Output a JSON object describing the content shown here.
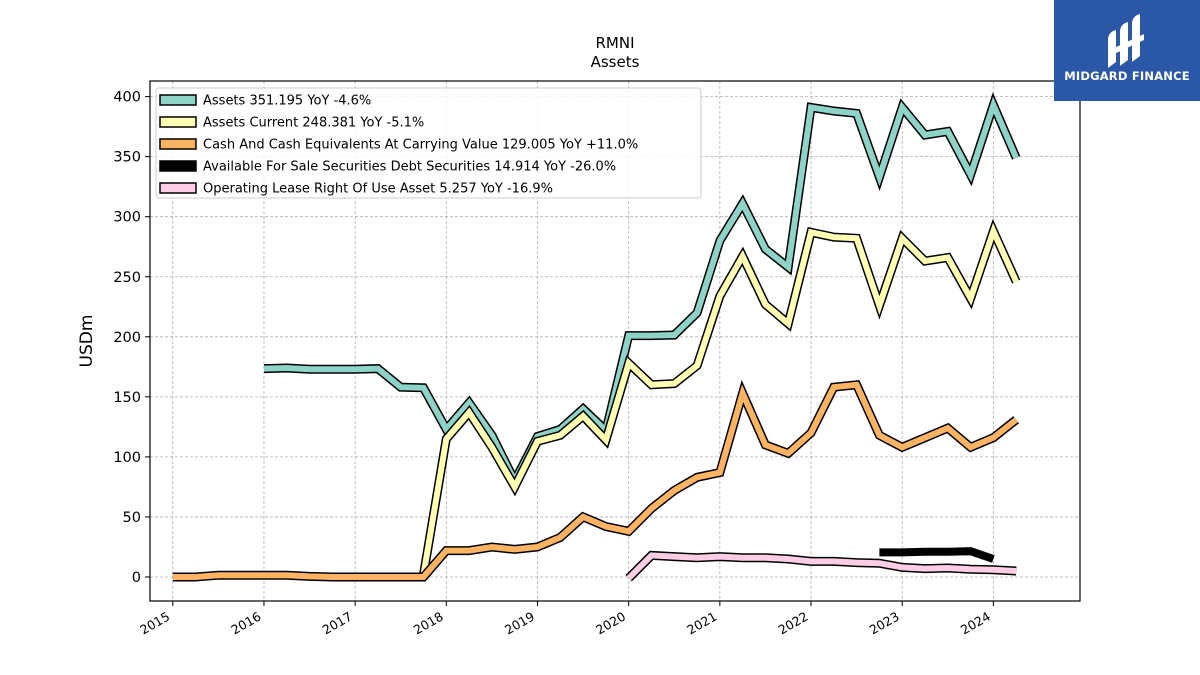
{
  "brand": {
    "name": "MIDGARD FINANCE",
    "color": "#2b58a6"
  },
  "chart_data": {
    "type": "line",
    "title": "RMNI",
    "subtitle": "Assets",
    "ylabel": "USDm",
    "xlabel": "",
    "xlim": [
      2014.75,
      2024.95
    ],
    "ylim": [
      -20,
      413
    ],
    "yticks": [
      0,
      50,
      100,
      150,
      200,
      250,
      300,
      350,
      400
    ],
    "xticks": [
      "2015",
      "2016",
      "2017",
      "2018",
      "2019",
      "2020",
      "2021",
      "2022",
      "2023",
      "2024"
    ],
    "grid": true,
    "legend_position": "top-left",
    "series": [
      {
        "name": "Assets  351.195 YoY -4.6%",
        "color": "#8dd3c7",
        "width": 6,
        "points": [
          [
            2016.0,
            173.5
          ],
          [
            2016.25,
            174
          ],
          [
            2016.5,
            173
          ],
          [
            2016.75,
            173
          ],
          [
            2017.0,
            173
          ],
          [
            2017.25,
            173.5
          ],
          [
            2017.5,
            158
          ],
          [
            2017.75,
            157.5
          ],
          [
            2018.0,
            123
          ],
          [
            2018.25,
            145
          ],
          [
            2018.5,
            118
          ],
          [
            2018.75,
            80
          ],
          [
            2019.0,
            117
          ],
          [
            2019.25,
            123
          ],
          [
            2019.5,
            140
          ],
          [
            2019.75,
            122
          ],
          [
            2020.0,
            201
          ],
          [
            2020.25,
            201
          ],
          [
            2020.5,
            201.5
          ],
          [
            2020.75,
            220
          ],
          [
            2021.0,
            280
          ],
          [
            2021.25,
            311
          ],
          [
            2021.5,
            273
          ],
          [
            2021.75,
            258
          ],
          [
            2022.0,
            391
          ],
          [
            2022.25,
            388
          ],
          [
            2022.5,
            386
          ],
          [
            2022.75,
            333
          ],
          [
            2023.0,
            391
          ],
          [
            2023.25,
            368
          ],
          [
            2023.5,
            371
          ],
          [
            2023.75,
            335
          ],
          [
            2024.0,
            393
          ],
          [
            2024.25,
            349
          ]
        ]
      },
      {
        "name": "Assets Current  248.381 YoY -5.1%",
        "color": "#ffffb3",
        "width": 6,
        "points": [
          [
            2017.75,
            2
          ],
          [
            2018.0,
            115
          ],
          [
            2018.25,
            137
          ],
          [
            2018.5,
            108
          ],
          [
            2018.75,
            75
          ],
          [
            2019.0,
            113
          ],
          [
            2019.25,
            118
          ],
          [
            2019.5,
            134
          ],
          [
            2019.75,
            114
          ],
          [
            2020.0,
            178
          ],
          [
            2020.25,
            160
          ],
          [
            2020.5,
            161
          ],
          [
            2020.75,
            176
          ],
          [
            2021.0,
            234
          ],
          [
            2021.25,
            267
          ],
          [
            2021.5,
            227
          ],
          [
            2021.75,
            211
          ],
          [
            2022.0,
            287
          ],
          [
            2022.25,
            283
          ],
          [
            2022.5,
            282
          ],
          [
            2022.75,
            226
          ],
          [
            2023.0,
            282
          ],
          [
            2023.25,
            263
          ],
          [
            2023.5,
            266
          ],
          [
            2023.75,
            232
          ],
          [
            2024.0,
            288
          ],
          [
            2024.25,
            246
          ]
        ]
      },
      {
        "name": "Cash And Cash Equivalents At Carrying Value  129.005 YoY +11.0%",
        "color": "#fdb462",
        "width": 6,
        "points": [
          [
            2015.0,
            0
          ],
          [
            2015.25,
            0
          ],
          [
            2015.5,
            1.5
          ],
          [
            2015.75,
            1.5
          ],
          [
            2016.0,
            1.5
          ],
          [
            2016.25,
            1.5
          ],
          [
            2016.5,
            0.5
          ],
          [
            2016.75,
            0
          ],
          [
            2017.0,
            0
          ],
          [
            2017.25,
            0
          ],
          [
            2017.5,
            0
          ],
          [
            2017.75,
            0
          ],
          [
            2018.0,
            22
          ],
          [
            2018.25,
            22
          ],
          [
            2018.5,
            25
          ],
          [
            2018.75,
            23
          ],
          [
            2019.0,
            25
          ],
          [
            2019.25,
            33
          ],
          [
            2019.5,
            50
          ],
          [
            2019.75,
            42
          ],
          [
            2020.0,
            38
          ],
          [
            2020.25,
            57
          ],
          [
            2020.5,
            72
          ],
          [
            2020.75,
            83
          ],
          [
            2021.0,
            87
          ],
          [
            2021.25,
            153
          ],
          [
            2021.5,
            110
          ],
          [
            2021.75,
            103
          ],
          [
            2022.0,
            120
          ],
          [
            2022.25,
            158
          ],
          [
            2022.5,
            160
          ],
          [
            2022.75,
            118
          ],
          [
            2023.0,
            108
          ],
          [
            2023.25,
            116
          ],
          [
            2023.5,
            124
          ],
          [
            2023.75,
            108
          ],
          [
            2024.0,
            116
          ],
          [
            2024.25,
            131
          ]
        ]
      },
      {
        "name": "Available For Sale Securities Debt Securities  14.914 YoY -26.0%",
        "color": "#000000",
        "width": 8,
        "points": [
          [
            2022.75,
            20.5
          ],
          [
            2023.0,
            20.5
          ],
          [
            2023.25,
            21
          ],
          [
            2023.5,
            21
          ],
          [
            2023.75,
            21.5
          ],
          [
            2024.0,
            15
          ]
        ]
      },
      {
        "name": "Operating Lease Right Of Use Asset  5.257 YoY -16.9%",
        "color": "#fccde5",
        "width": 6,
        "points": [
          [
            2020.0,
            -1
          ],
          [
            2020.25,
            18
          ],
          [
            2020.5,
            17
          ],
          [
            2020.75,
            16
          ],
          [
            2021.0,
            17
          ],
          [
            2021.25,
            16
          ],
          [
            2021.5,
            16
          ],
          [
            2021.75,
            15
          ],
          [
            2022.0,
            13
          ],
          [
            2022.25,
            13
          ],
          [
            2022.5,
            12
          ],
          [
            2022.75,
            11.5
          ],
          [
            2023.0,
            8
          ],
          [
            2023.25,
            7
          ],
          [
            2023.5,
            7.5
          ],
          [
            2023.75,
            6.5
          ],
          [
            2024.0,
            6
          ],
          [
            2024.25,
            5
          ]
        ]
      }
    ]
  }
}
